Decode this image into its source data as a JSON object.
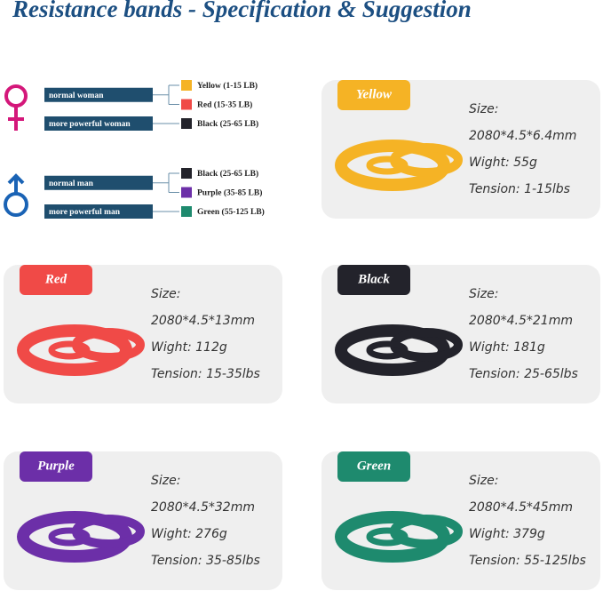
{
  "title": "Resistance bands - Specification & Suggestion",
  "suggestion": {
    "groups": [
      {
        "rows": [
          {
            "label": "normal woman",
            "bands": [
              {
                "name": "Yellow (1-15 LB)",
                "color": "#f5b325"
              },
              {
                "name": "Red (15-35 LB)",
                "color": "#f04a47"
              }
            ]
          },
          {
            "label": "more powerful woman",
            "bands": [
              {
                "name": "Black (25-65 LB)",
                "color": "#23232b"
              }
            ]
          }
        ]
      },
      {
        "rows": [
          {
            "label": "normal man",
            "bands": [
              {
                "name": "Black (25-65 LB)",
                "color": "#23232b"
              },
              {
                "name": "Purple (35-85 LB)",
                "color": "#6c2fa8"
              }
            ]
          },
          {
            "label": "more powerful man",
            "bands": [
              {
                "name": "Green (55-125 LB)",
                "color": "#1e8a6e"
              }
            ]
          }
        ]
      }
    ]
  },
  "cards": [
    {
      "name": "Yellow",
      "color": "#f5b325",
      "size_label": "Size:",
      "size": "2080*4.5*6.4mm",
      "weight": "Wight: 55g",
      "tension": "Tension: 1-15lbs"
    },
    {
      "name": "Red",
      "color": "#f04a47",
      "size_label": "Size:",
      "size": "2080*4.5*13mm",
      "weight": "Wight: 112g",
      "tension": "Tension: 15-35lbs"
    },
    {
      "name": "Black",
      "color": "#23232b",
      "size_label": "Size:",
      "size": "2080*4.5*21mm",
      "weight": "Wight: 181g",
      "tension": "Tension: 25-65lbs"
    },
    {
      "name": "Purple",
      "color": "#6c2fa8",
      "size_label": "Size:",
      "size": "2080*4.5*32mm",
      "weight": "Wight: 276g",
      "tension": "Tension: 35-85lbs"
    },
    {
      "name": "Green",
      "color": "#1e8a6e",
      "size_label": "Size:",
      "size": "2080*4.5*45mm",
      "weight": "Wight: 379g",
      "tension": "Tension: 55-125lbs"
    }
  ]
}
